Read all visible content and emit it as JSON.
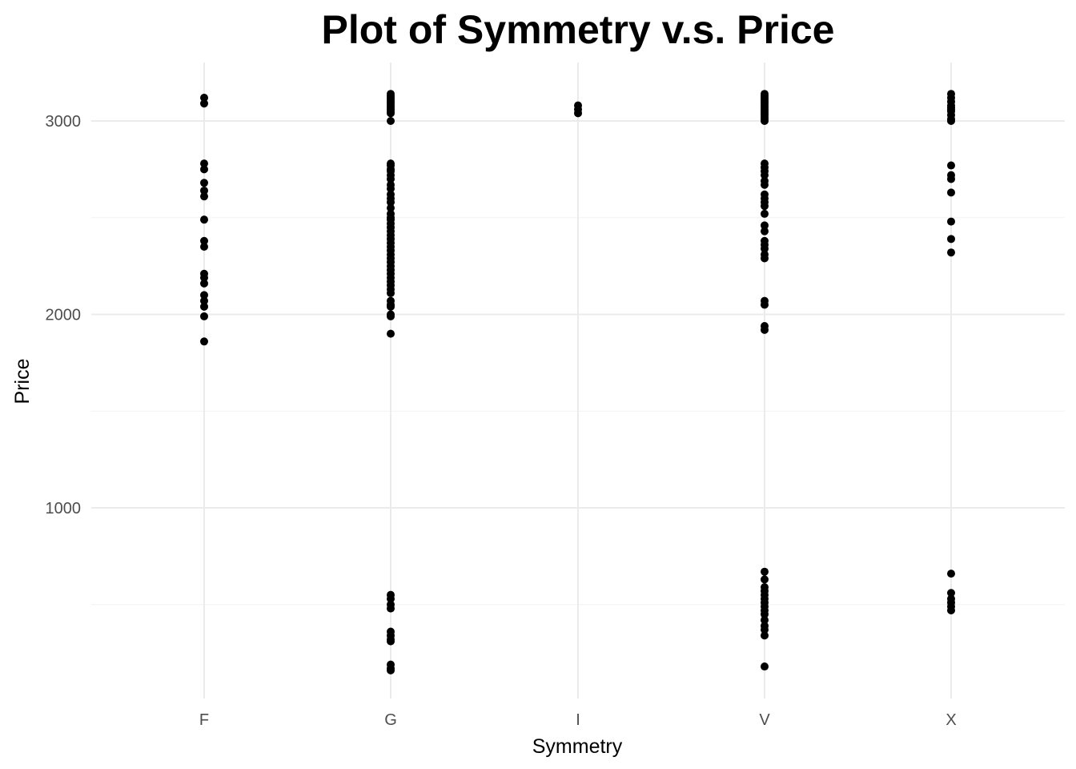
{
  "chart_data": {
    "type": "scatter",
    "title": "Plot of Symmetry v.s. Price",
    "xlabel": "Symmetry",
    "ylabel": "Price",
    "categories": [
      "F",
      "G",
      "I",
      "V",
      "X"
    ],
    "y_ticks": [
      1000,
      2000,
      3000
    ],
    "y_tick_labels": [
      "1000",
      "2000",
      "3000"
    ],
    "ylim": [
      30,
      3320
    ],
    "grid": true,
    "point_color": "#000000",
    "points": {
      "F": [
        3120,
        3090,
        2780,
        2750,
        2680,
        2640,
        2610,
        2490,
        2380,
        2350,
        2210,
        2190,
        2160,
        2100,
        2070,
        2040,
        1990,
        1860
      ],
      "G": [
        3140,
        3130,
        3120,
        3110,
        3100,
        3090,
        3080,
        3070,
        3060,
        3050,
        3040,
        3000,
        2780,
        2770,
        2750,
        2740,
        2720,
        2700,
        2670,
        2650,
        2620,
        2600,
        2580,
        2550,
        2520,
        2500,
        2490,
        2470,
        2450,
        2430,
        2410,
        2390,
        2370,
        2350,
        2330,
        2310,
        2290,
        2270,
        2250,
        2230,
        2210,
        2190,
        2170,
        2150,
        2130,
        2110,
        2070,
        2050,
        2040,
        2000,
        1990,
        1900,
        550,
        530,
        500,
        480,
        360,
        340,
        320,
        310,
        190,
        170,
        160
      ],
      "I": [
        3080,
        3060,
        3040
      ],
      "V": [
        3140,
        3130,
        3120,
        3110,
        3100,
        3090,
        3080,
        3070,
        3060,
        3050,
        3040,
        3030,
        3020,
        3010,
        3000,
        2780,
        2760,
        2740,
        2720,
        2690,
        2670,
        2620,
        2600,
        2580,
        2560,
        2520,
        2460,
        2430,
        2380,
        2360,
        2340,
        2310,
        2290,
        2070,
        2050,
        1940,
        1920,
        670,
        630,
        590,
        570,
        550,
        530,
        510,
        490,
        470,
        450,
        420,
        390,
        370,
        340,
        180
      ],
      "X": [
        3140,
        3120,
        3100,
        3080,
        3070,
        3060,
        3050,
        3030,
        3010,
        3000,
        2770,
        2720,
        2700,
        2630,
        2480,
        2390,
        2320,
        660,
        560,
        530,
        510,
        490,
        470
      ]
    }
  }
}
